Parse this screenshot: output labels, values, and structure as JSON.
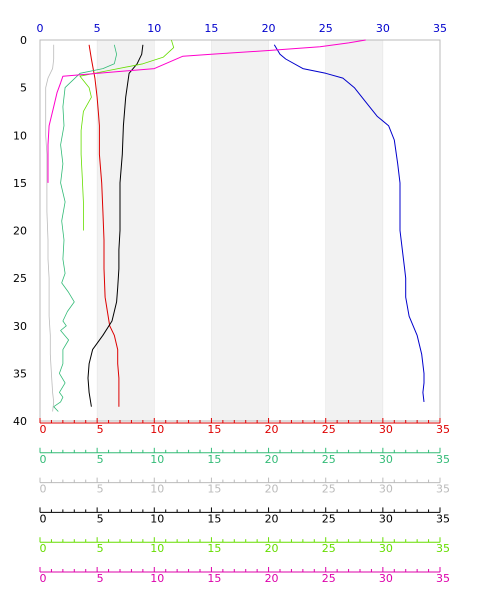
{
  "chart_data": {
    "type": "line",
    "title": "",
    "xlabel": "",
    "ylabel": "",
    "xlim": [
      0,
      35
    ],
    "ylim": [
      40,
      0
    ],
    "y_ticks": [
      0,
      5,
      10,
      15,
      20,
      25,
      30,
      35,
      40
    ],
    "x_ticks": [
      0,
      5,
      10,
      15,
      20,
      25,
      30,
      35
    ],
    "shaded_bands": [
      [
        5,
        10
      ],
      [
        15,
        20
      ],
      [
        25,
        30
      ]
    ],
    "grid": false,
    "top_axis": {
      "color": "#0000cc",
      "ticks": [
        "0",
        "5",
        "10",
        "15",
        "20",
        "25",
        "30",
        "35"
      ]
    },
    "bottom_axes": [
      {
        "color": "#dd0000",
        "ticks": [
          "0",
          "5",
          "10",
          "15",
          "20",
          "25",
          "30",
          "35"
        ]
      },
      {
        "color": "#33bb77",
        "ticks": [
          "0",
          "5",
          "10",
          "15",
          "20",
          "25",
          "30",
          "35"
        ]
      },
      {
        "color": "#bbbbbb",
        "ticks": [
          "0",
          "5",
          "10",
          "15",
          "20",
          "25",
          "30",
          "35"
        ]
      },
      {
        "color": "#000000",
        "ticks": [
          "0",
          "5",
          "10",
          "15",
          "20",
          "25",
          "30",
          "35"
        ]
      },
      {
        "color": "#66dd00",
        "ticks": [
          "0",
          "5",
          "10",
          "15",
          "20",
          "25",
          "30",
          "35"
        ]
      },
      {
        "color": "#dd00aa",
        "ticks": [
          "0",
          "5",
          "10",
          "15",
          "20",
          "25",
          "30",
          "35"
        ]
      }
    ],
    "series": [
      {
        "color": "#0000cc",
        "width": 1,
        "x": [
          20.5,
          21,
          21.5,
          23,
          25,
          26.5,
          27.5,
          28.5,
          29.5,
          30.5,
          31,
          31.3,
          31.5,
          31.5,
          31.5,
          31.7,
          31.9,
          32,
          32,
          32.3,
          33,
          33.4,
          33.6,
          33.6,
          33.5,
          33.6
        ],
        "y": [
          0.5,
          1.5,
          2,
          3,
          3.5,
          4,
          5,
          6.5,
          8,
          9,
          10.5,
          13,
          15,
          18,
          20,
          22,
          24,
          25,
          27,
          29,
          31,
          33,
          35,
          36,
          37,
          38
        ]
      },
      {
        "color": "#dd0000",
        "width": 1,
        "x": [
          4.3,
          4.5,
          4.8,
          5,
          5.1,
          5.2,
          5.2,
          5.4,
          5.5,
          5.6,
          5.6,
          5.7,
          5.9,
          6.1,
          6.5,
          6.8,
          6.8,
          6.9,
          6.9,
          6.9
        ],
        "y": [
          0.5,
          2,
          4,
          6,
          7.5,
          9,
          12,
          15,
          18,
          21,
          24,
          27,
          28.5,
          30,
          31,
          32.5,
          34,
          35.5,
          37,
          38.5
        ]
      },
      {
        "color": "#33bb77",
        "width": 0.8,
        "x": [
          6.5,
          6.7,
          6.5,
          5.5,
          3.5,
          2.2,
          2,
          2.1,
          1.8,
          2,
          1.8,
          2.2,
          1.9,
          2.1,
          2,
          2.2,
          1.9,
          2.5,
          3,
          2.4,
          2,
          2.3,
          1.8,
          2.5,
          2,
          2,
          1.7,
          2.2,
          1.7,
          2,
          1.8,
          1.2,
          1.6
        ],
        "y": [
          0.5,
          1.5,
          2.5,
          3,
          3.5,
          5,
          7,
          9,
          11,
          13,
          15,
          17,
          19,
          21,
          23,
          24.5,
          25.5,
          26.5,
          27.5,
          28.5,
          29.5,
          30,
          30.5,
          31.5,
          32.5,
          34,
          35,
          36,
          37,
          37.5,
          38,
          38.5,
          39
        ]
      },
      {
        "color": "#bbbbbb",
        "width": 0.8,
        "x": [
          1.2,
          1.2,
          1.1,
          0.9,
          0.7,
          0.5,
          0.5,
          0.5,
          0.6,
          0.6,
          0.6,
          0.7,
          0.7,
          0.8,
          0.8,
          0.8,
          0.9,
          0.9,
          1,
          1.1,
          1.2,
          1.1
        ],
        "y": [
          0.5,
          2,
          3,
          3.5,
          4,
          5,
          7,
          10,
          12,
          15,
          18,
          21,
          23,
          25,
          27,
          29,
          31,
          33,
          35,
          37,
          38,
          39
        ]
      },
      {
        "color": "#000000",
        "width": 1,
        "x": [
          9,
          8.9,
          8.5,
          7.8,
          7.5,
          7.3,
          7.2,
          7,
          7,
          7,
          6.9,
          6.9,
          6.8,
          6.7,
          6.5,
          6.3,
          5.5,
          4.6,
          4.3,
          4.2,
          4.3,
          4.5
        ],
        "y": [
          0.5,
          1.5,
          2.5,
          3.5,
          6,
          9,
          12,
          15,
          18,
          20,
          22,
          24,
          26,
          27.5,
          28.5,
          29.5,
          31,
          32.5,
          34,
          35.5,
          37,
          38.5
        ]
      },
      {
        "color": "#66dd00",
        "width": 0.8,
        "x": [
          11.5,
          11.7,
          10.8,
          9,
          6,
          3.5,
          4.3,
          4.5,
          3.8,
          3.6,
          3.6,
          3.7,
          3.8,
          3.8,
          3.8
        ],
        "y": [
          0,
          0.8,
          1.8,
          2.5,
          3.2,
          3.8,
          5,
          6,
          7.5,
          9.5,
          12,
          14.5,
          17,
          19,
          20
        ]
      },
      {
        "color": "#ff00cc",
        "width": 1,
        "x": [
          28.5,
          27,
          24.5,
          20,
          15,
          12.5,
          10,
          2,
          1.8,
          1.5,
          1.2,
          0.8,
          0.7,
          0.7
        ],
        "y": [
          0,
          0.3,
          0.7,
          1.1,
          1.5,
          1.7,
          3,
          3.8,
          4.5,
          5.5,
          7,
          9,
          11,
          15
        ]
      }
    ]
  }
}
